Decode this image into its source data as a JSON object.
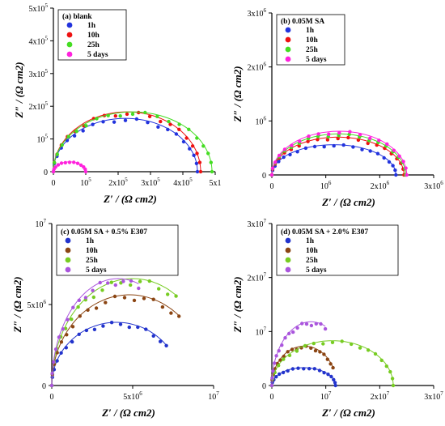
{
  "chart_data": [
    {
      "type": "scatter",
      "panel": "a",
      "legend_title": "(a) blank",
      "xlabel": "Z′ / (Ω cm2)",
      "ylabel": "Z″ / (Ω cm2)",
      "xlim": [
        0,
        500000
      ],
      "ylim": [
        0,
        500000
      ],
      "xticks": [
        {
          "v": 0,
          "m": "0",
          "e": ""
        },
        {
          "v": 100000,
          "m": "10",
          "e": "5"
        },
        {
          "v": 200000,
          "m": "2x10",
          "e": "5"
        },
        {
          "v": 300000,
          "m": "3x10",
          "e": "5"
        },
        {
          "v": 400000,
          "m": "4x10",
          "e": "5"
        },
        {
          "v": 500000,
          "m": "5x1",
          "e": ""
        }
      ],
      "yticks": [
        {
          "v": 0,
          "m": "0",
          "e": ""
        },
        {
          "v": 100000,
          "m": "10",
          "e": "5"
        },
        {
          "v": 200000,
          "m": "2x10",
          "e": "5"
        },
        {
          "v": 300000,
          "m": "3x10",
          "e": "5"
        },
        {
          "v": 400000,
          "m": "4x10",
          "e": "5"
        },
        {
          "v": 500000,
          "m": "5x10",
          "e": "5"
        }
      ],
      "legend_position": "top-left",
      "series": [
        {
          "name": "1h",
          "color": "#2233dd",
          "r": 445000,
          "h": 163000,
          "n": 20
        },
        {
          "name": "10h",
          "color": "#ee1111",
          "r": 455000,
          "h": 183000,
          "n": 20
        },
        {
          "name": "25h",
          "color": "#44dd22",
          "r": 490000,
          "h": 183000,
          "n": 20
        },
        {
          "name": "5 days",
          "color": "#ff22dd",
          "r": 100000,
          "h": 30000,
          "n": 12
        }
      ]
    },
    {
      "type": "scatter",
      "panel": "b",
      "legend_title": "(b) 0.05M SA",
      "xlabel": "Z′ / (Ω cm2)",
      "ylabel": "Z″ / (Ω cm2)",
      "xlim": [
        0,
        3000000
      ],
      "ylim": [
        0,
        3000000
      ],
      "xticks": [
        {
          "v": 0,
          "m": "0",
          "e": ""
        },
        {
          "v": 1000000,
          "m": "10",
          "e": "6"
        },
        {
          "v": 2000000,
          "m": "2x10",
          "e": "6"
        },
        {
          "v": 3000000,
          "m": "3x10",
          "e": "6"
        }
      ],
      "yticks": [
        {
          "v": 0,
          "m": "0",
          "e": ""
        },
        {
          "v": 1000000,
          "m": "10",
          "e": "6"
        },
        {
          "v": 2000000,
          "m": "2x10",
          "e": "6"
        },
        {
          "v": 3000000,
          "m": "3x10",
          "e": "6"
        }
      ],
      "legend_position": "top-left",
      "series": [
        {
          "name": "1h",
          "color": "#2233dd",
          "r": 2300000,
          "h": 560000,
          "n": 20
        },
        {
          "name": "10h",
          "color": "#ee1111",
          "r": 2450000,
          "h": 700000,
          "n": 20
        },
        {
          "name": "25h",
          "color": "#44dd22",
          "r": 2480000,
          "h": 760000,
          "n": 20
        },
        {
          "name": "5 days",
          "color": "#ff22dd",
          "r": 2500000,
          "h": 810000,
          "n": 20
        }
      ]
    },
    {
      "type": "scatter",
      "panel": "c",
      "legend_title": "(c) 0.05M SA + 0.5% E307",
      "xlabel": "Z′ / (Ω cm2)",
      "ylabel": "Z″ / (Ω cm2)",
      "xlim": [
        0,
        10000000
      ],
      "ylim": [
        0,
        10000000
      ],
      "xticks": [
        {
          "v": 0,
          "m": "0",
          "e": ""
        },
        {
          "v": 5000000,
          "m": "5x10",
          "e": "6"
        },
        {
          "v": 10000000,
          "m": "10",
          "e": "7"
        }
      ],
      "yticks": [
        {
          "v": 0,
          "m": "0",
          "e": ""
        },
        {
          "v": 5000000,
          "m": "5x10",
          "e": "6"
        },
        {
          "v": 10000000,
          "m": "10",
          "e": "7"
        }
      ],
      "legend_position": "top-left",
      "series": [
        {
          "name": "1h",
          "color": "#2233cc",
          "r": 8000000,
          "h": 3900000,
          "n": 18,
          "arc": 0.78
        },
        {
          "name": "10h",
          "color": "#8b4513",
          "r": 9600000,
          "h": 5600000,
          "n": 18,
          "arc": 0.72
        },
        {
          "name": "25h",
          "color": "#77cc22",
          "r": 10000000,
          "h": 6600000,
          "n": 18,
          "arc": 0.68
        },
        {
          "name": "5 days",
          "color": "#aa55dd",
          "r": 8200000,
          "h": 6600000,
          "n": 16,
          "arc": 0.6
        }
      ]
    },
    {
      "type": "scatter",
      "panel": "d",
      "legend_title": "(d) 0.05M SA + 2.0% E307",
      "xlabel": "Z′ / (Ω cm2)",
      "ylabel": "Z″ / (Ω cm2)",
      "xlim": [
        0,
        30000000
      ],
      "ylim": [
        0,
        30000000
      ],
      "xticks": [
        {
          "v": 0,
          "m": "0",
          "e": ""
        },
        {
          "v": 10000000,
          "m": "10",
          "e": "7"
        },
        {
          "v": 20000000,
          "m": "2x10",
          "e": "7"
        },
        {
          "v": 30000000,
          "m": "3x10",
          "e": "7"
        }
      ],
      "yticks": [
        {
          "v": 0,
          "m": "0",
          "e": ""
        },
        {
          "v": 10000000,
          "m": "10",
          "e": "7"
        },
        {
          "v": 20000000,
          "m": "2x10",
          "e": "7"
        },
        {
          "v": 30000000,
          "m": "3x10",
          "e": "7"
        }
      ],
      "legend_position": "top-left",
      "series": [
        {
          "name": "1h",
          "color": "#2233cc",
          "r": 11800000,
          "h": 3300000,
          "n": 18,
          "arc": 1.0
        },
        {
          "name": "10h",
          "color": "#8b4513",
          "r": 12000000,
          "h": 7300000,
          "n": 18,
          "arc": 0.85
        },
        {
          "name": "25h",
          "color": "#77cc22",
          "r": 22500000,
          "h": 8300000,
          "n": 20,
          "arc": 1.0
        },
        {
          "name": "5 days",
          "color": "#aa55dd",
          "r": 14500000,
          "h": 11800000,
          "n": 16,
          "arc": 0.62
        }
      ]
    }
  ]
}
